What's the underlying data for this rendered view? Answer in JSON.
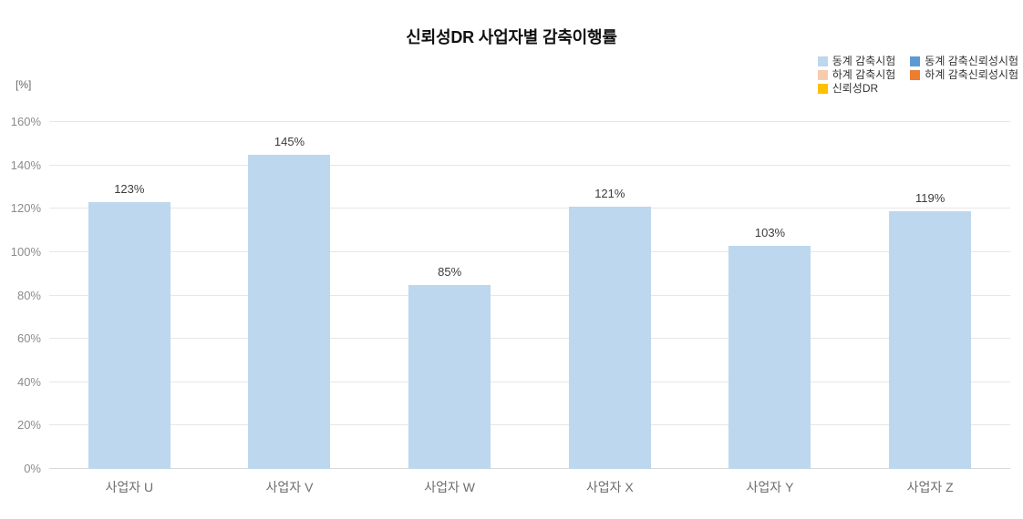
{
  "title": "신뢰성DR 사업자별 감축이행률",
  "axis_unit_label": "[%]",
  "legend": {
    "position": "top-right",
    "items": [
      {
        "label": "동계 감축시험",
        "color": "#BDD7EE"
      },
      {
        "label": "동계 감축신뢰성시험",
        "color": "#5B9BD5"
      },
      {
        "label": "하계 감축시험",
        "color": "#F8CBAD"
      },
      {
        "label": "하계 감축신뢰성시험",
        "color": "#ED7D31"
      },
      {
        "label": "신뢰성DR",
        "color": "#FFC000"
      }
    ]
  },
  "chart_data": {
    "type": "bar",
    "title": "신뢰성DR 사업자별 감축이행률",
    "categories": [
      "사업자 U",
      "사업자 V",
      "사업자 W",
      "사업자 X",
      "사업자 Y",
      "사업자 Z"
    ],
    "series": [
      {
        "name": "동계 감축시험",
        "color": "#BDD7EE",
        "values": [
          123,
          145,
          85,
          121,
          103,
          119
        ],
        "data_labels": [
          "123%",
          "145%",
          "85%",
          "121%",
          "103%",
          "119%"
        ]
      }
    ],
    "xlabel": "",
    "ylabel": "[%]",
    "ylim": [
      0,
      160
    ],
    "ytick_step": 20,
    "ytick_labels": [
      "0%",
      "20%",
      "40%",
      "60%",
      "80%",
      "100%",
      "120%",
      "140%",
      "160%"
    ],
    "grid": true,
    "legend_position": "top-right"
  }
}
